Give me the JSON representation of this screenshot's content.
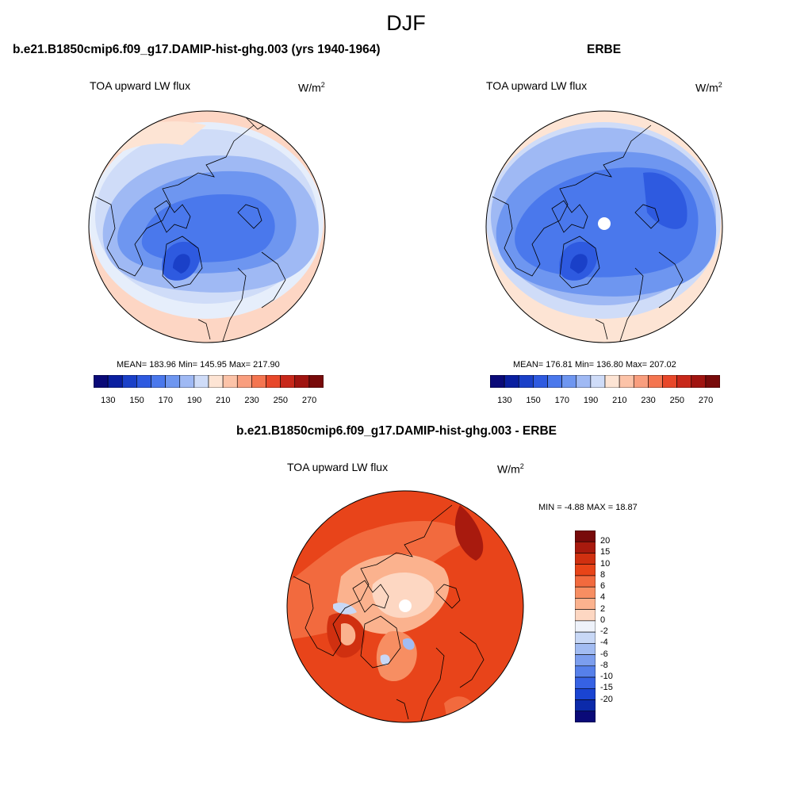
{
  "title": "DJF",
  "units": {
    "base": "W/m",
    "sup": "2"
  },
  "panels": [
    {
      "title": "b.e21.B1850cmip6.f09_g17.DAMIP-hist-ghg.003 (yrs 1940-1964)",
      "subtitle": "TOA upward LW flux",
      "stats": "MEAN= 183.96  Min= 145.95  Max= 217.90"
    },
    {
      "title": "ERBE",
      "subtitle": "TOA upward LW flux",
      "stats": "MEAN= 176.81  Min= 136.80  Max= 207.02"
    },
    {
      "title": "b.e21.B1850cmip6.f09_g17.DAMIP-hist-ghg.003 - ERBE",
      "subtitle": "TOA upward LW flux",
      "stats": "MIN =  -4.88 MAX =  18.87"
    }
  ],
  "colorbar_abs": {
    "colors": [
      "#0a0a78",
      "#0a1fa0",
      "#1a40c8",
      "#2e5ae0",
      "#4a78ec",
      "#6e96f0",
      "#9fb9f4",
      "#cfdcf8",
      "#fde4d4",
      "#fcc3a8",
      "#f99e7e",
      "#f47550",
      "#e8482a",
      "#c8281a",
      "#a01410",
      "#780a0a"
    ],
    "tick_labels": [
      "130",
      "150",
      "170",
      "190",
      "210",
      "230",
      "250",
      "270"
    ]
  },
  "colorbar_diff": {
    "colors": [
      "#780a0a",
      "#a81a0e",
      "#d03010",
      "#e84418",
      "#f26a3e",
      "#f78e62",
      "#fbb28e",
      "#fdd7c2",
      "#eef2fa",
      "#c8d8f6",
      "#a2bcf2",
      "#7c9eee",
      "#5680ea",
      "#3662e4",
      "#1a44d2",
      "#0c2aaa",
      "#0a0a78"
    ],
    "tick_labels": [
      "20",
      "15",
      "10",
      "8",
      "6",
      "4",
      "2",
      "0",
      "-2",
      "-4",
      "-6",
      "-8",
      "-10",
      "-15",
      "-20"
    ]
  }
}
